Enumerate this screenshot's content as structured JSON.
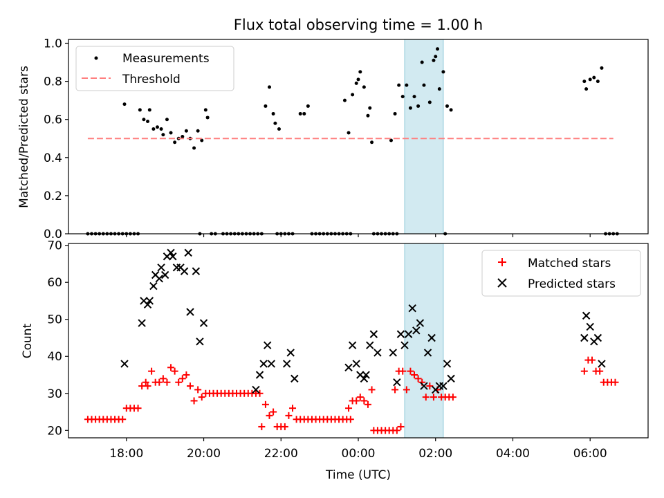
{
  "title": "Flux total observing time = 1.00 h",
  "colors": {
    "measurement": "#000000",
    "threshold": "#ff7f7f",
    "matched": "#ff0000",
    "predicted": "#000000",
    "highlight": "#add8e6"
  },
  "chart_data": [
    {
      "type": "scatter",
      "ylabel": "Matched/Predicted stars",
      "xlabel": "",
      "x_unit": "hours after 00:00 UTC of the first night",
      "xlim": [
        16.5,
        31.5
      ],
      "ylim": [
        0,
        1.02
      ],
      "yticks": [
        0.0,
        0.2,
        0.4,
        0.6,
        0.8,
        1.0
      ],
      "ytick_labels": [
        "0.0",
        "0.2",
        "0.4",
        "0.6",
        "0.8",
        "1.0"
      ],
      "highlight_span": [
        25.2,
        26.2
      ],
      "legend": {
        "position": "top-left",
        "entries": [
          "Measurements",
          "Threshold"
        ]
      },
      "series": [
        {
          "name": "Measurements",
          "marker": "dot",
          "x": [
            17.0,
            17.1,
            17.2,
            17.3,
            17.4,
            17.5,
            17.6,
            17.7,
            17.8,
            17.9,
            18.0,
            18.1,
            18.2,
            18.3,
            17.95,
            18.35,
            18.45,
            18.55,
            18.6,
            18.7,
            18.8,
            18.9,
            18.95,
            19.05,
            19.15,
            19.25,
            19.35,
            19.45,
            19.55,
            19.65,
            19.75,
            19.85,
            19.95,
            20.05,
            19.9,
            20.1,
            20.2,
            20.3,
            20.5,
            20.6,
            20.7,
            20.8,
            20.9,
            21.0,
            21.1,
            21.2,
            21.3,
            21.4,
            21.5,
            21.6,
            21.7,
            21.8,
            21.85,
            21.95,
            22.1,
            22.2,
            22.3,
            21.9,
            22.0,
            22.5,
            22.6,
            22.7,
            22.8,
            22.9,
            23.0,
            23.1,
            23.2,
            23.3,
            23.4,
            23.5,
            23.6,
            23.7,
            23.8,
            23.65,
            23.75,
            23.85,
            23.95,
            24.0,
            24.05,
            24.15,
            24.25,
            24.3,
            24.35,
            24.4,
            24.5,
            24.6,
            24.7,
            24.8,
            24.9,
            25.0,
            24.85,
            24.95,
            25.05,
            25.15,
            25.25,
            25.35,
            25.45,
            25.55,
            25.65,
            25.7,
            25.85,
            25.95,
            26.0,
            26.05,
            26.1,
            26.2,
            26.3,
            26.4,
            26.25,
            29.85,
            29.9,
            30.0,
            30.1,
            30.2,
            30.3,
            30.4,
            30.5,
            30.6,
            30.7
          ],
          "y": [
            0,
            0,
            0,
            0,
            0,
            0,
            0,
            0,
            0,
            0,
            0,
            0,
            0,
            0,
            0.68,
            0.65,
            0.6,
            0.59,
            0.65,
            0.55,
            0.56,
            0.55,
            0.52,
            0.6,
            0.53,
            0.48,
            0.5,
            0.51,
            0.54,
            0.5,
            0.45,
            0.54,
            0.49,
            0.65,
            0,
            0.61,
            0,
            0,
            0,
            0,
            0,
            0,
            0,
            0,
            0,
            0,
            0,
            0,
            0,
            0.67,
            0.77,
            0.63,
            0.58,
            0.55,
            0,
            0,
            0,
            0,
            0,
            0.63,
            0.63,
            0.67,
            0,
            0,
            0,
            0,
            0,
            0,
            0,
            0,
            0,
            0,
            0,
            0.7,
            0.53,
            0.73,
            0.79,
            0.81,
            0.85,
            0.77,
            0.62,
            0.66,
            0.48,
            0,
            0,
            0,
            0,
            0,
            0,
            0,
            0.49,
            0.63,
            0.78,
            0.72,
            0.78,
            0.66,
            0.72,
            0.67,
            0.9,
            0.78,
            0.69,
            0.91,
            0.93,
            0.97,
            0.76,
            0.85,
            0.67,
            0.65,
            0,
            0.8,
            0.76,
            0.81,
            0.82,
            0.8,
            0.87,
            0,
            0,
            0,
            0
          ]
        },
        {
          "name": "Threshold",
          "marker": "dashed-line",
          "x": [
            17.0,
            30.6
          ],
          "y": [
            0.5,
            0.5
          ]
        }
      ]
    },
    {
      "type": "scatter",
      "ylabel": "Count",
      "xlabel": "Time (UTC)",
      "x_unit": "hours after 00:00 UTC of the first night",
      "xlim": [
        16.5,
        31.5
      ],
      "ylim": [
        18,
        70.5
      ],
      "yticks": [
        20,
        30,
        40,
        50,
        60,
        70
      ],
      "xticks": [
        18,
        20,
        22,
        24,
        26,
        28,
        30
      ],
      "xtick_labels": [
        "18:00",
        "20:00",
        "22:00",
        "00:00",
        "02:00",
        "04:00",
        "06:00"
      ],
      "highlight_span": [
        25.2,
        26.2
      ],
      "legend": {
        "position": "top-right",
        "entries": [
          "Matched stars",
          "Predicted stars"
        ]
      },
      "series": [
        {
          "name": "Matched stars",
          "marker": "plus",
          "x": [
            17.0,
            17.1,
            17.2,
            17.3,
            17.4,
            17.5,
            17.6,
            17.7,
            17.8,
            17.9,
            18.0,
            18.1,
            18.2,
            18.3,
            18.4,
            18.5,
            18.55,
            18.65,
            18.75,
            18.85,
            18.95,
            19.05,
            19.15,
            19.25,
            19.35,
            19.45,
            19.55,
            19.65,
            19.75,
            19.85,
            19.95,
            20.05,
            20.15,
            20.25,
            20.35,
            20.45,
            20.55,
            20.65,
            20.75,
            20.85,
            20.95,
            21.05,
            21.15,
            21.25,
            21.35,
            21.45,
            21.5,
            21.6,
            21.7,
            21.8,
            21.9,
            22.0,
            22.1,
            22.2,
            22.3,
            22.4,
            22.5,
            22.6,
            22.7,
            22.8,
            22.9,
            23.0,
            23.1,
            23.2,
            23.3,
            23.4,
            23.5,
            23.6,
            23.7,
            23.8,
            23.75,
            23.85,
            23.95,
            24.05,
            24.15,
            24.25,
            24.35,
            24.4,
            24.5,
            24.6,
            24.7,
            24.8,
            24.9,
            25.0,
            25.1,
            24.95,
            25.05,
            25.15,
            25.25,
            25.35,
            25.45,
            25.55,
            25.65,
            25.75,
            25.85,
            25.95,
            26.05,
            26.15,
            26.25,
            26.35,
            26.45,
            29.85,
            29.95,
            30.05,
            30.15,
            30.25,
            30.35,
            30.45,
            30.55,
            30.65
          ],
          "y": [
            23,
            23,
            23,
            23,
            23,
            23,
            23,
            23,
            23,
            23,
            26,
            26,
            26,
            26,
            32,
            33,
            32,
            36,
            33,
            33,
            34,
            33,
            37,
            36,
            33,
            34,
            35,
            32,
            28,
            31,
            29,
            30,
            30,
            30,
            30,
            30,
            30,
            30,
            30,
            30,
            30,
            30,
            30,
            30,
            30,
            30,
            21,
            27,
            24,
            25,
            21,
            21,
            21,
            24,
            26,
            23,
            23,
            23,
            23,
            23,
            23,
            23,
            23,
            23,
            23,
            23,
            23,
            23,
            23,
            23,
            26,
            28,
            28,
            29,
            28,
            27,
            31,
            20,
            20,
            20,
            20,
            20,
            20,
            20,
            21,
            31,
            36,
            36,
            31,
            36,
            35,
            34,
            33,
            29,
            32,
            29,
            31,
            29,
            29,
            29,
            29,
            36,
            39,
            39,
            36,
            36,
            33,
            33,
            33,
            33
          ]
        },
        {
          "name": "Predicted stars",
          "marker": "x",
          "x": [
            17.95,
            18.4,
            18.45,
            18.55,
            18.6,
            18.7,
            18.75,
            18.85,
            18.9,
            19.0,
            19.05,
            19.15,
            19.2,
            19.3,
            19.4,
            19.5,
            19.6,
            19.65,
            19.8,
            19.9,
            20.0,
            21.35,
            21.45,
            21.55,
            21.65,
            21.75,
            22.15,
            22.25,
            22.35,
            23.75,
            23.85,
            23.95,
            24.05,
            24.15,
            24.2,
            24.3,
            24.4,
            24.5,
            24.9,
            25.0,
            25.1,
            25.2,
            25.3,
            25.4,
            25.5,
            25.6,
            25.7,
            25.8,
            25.9,
            26.0,
            26.1,
            26.2,
            26.3,
            26.4,
            29.85,
            29.9,
            30.0,
            30.1,
            30.2,
            30.3
          ],
          "y": [
            38,
            49,
            55,
            54,
            55,
            59,
            62,
            61,
            64,
            62,
            67,
            68,
            67,
            64,
            64,
            63,
            68,
            52,
            63,
            44,
            49,
            31,
            35,
            38,
            43,
            38,
            38,
            41,
            34,
            37,
            43,
            38,
            35,
            34,
            35,
            43,
            46,
            41,
            41,
            33,
            46,
            43,
            46,
            53,
            47,
            49,
            32,
            41,
            45,
            31,
            32,
            32,
            38,
            34,
            45,
            51,
            48,
            44,
            45,
            38
          ]
        }
      ]
    }
  ]
}
